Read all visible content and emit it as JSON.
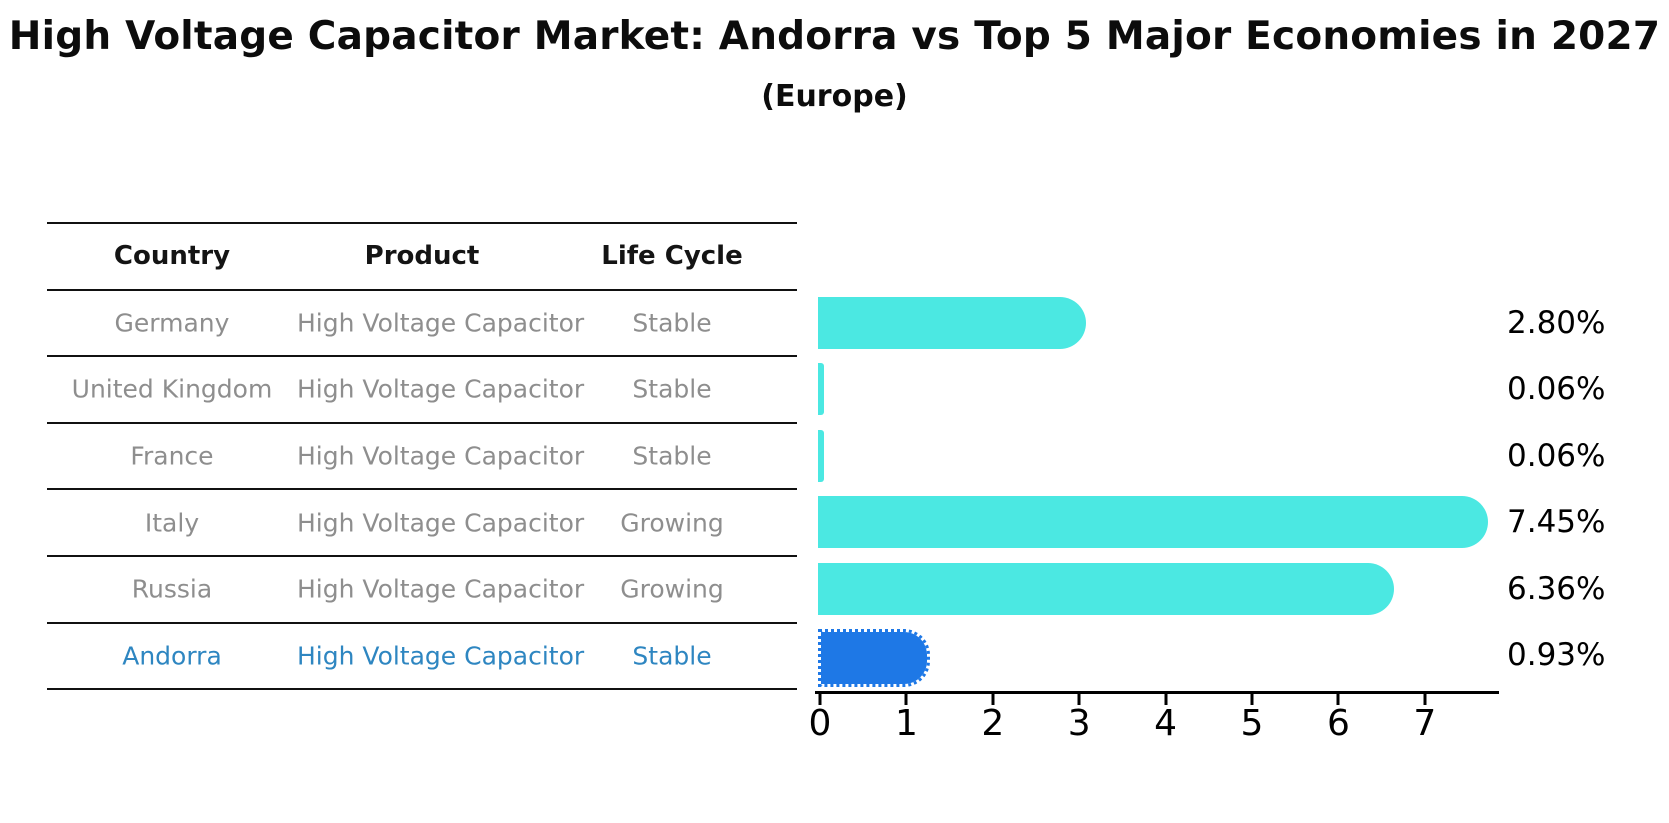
{
  "title": "High Voltage Capacitor Market: Andorra vs Top 5 Major Economies in 2027",
  "subtitle": "(Europe)",
  "table": {
    "headers": [
      "Country",
      "Product",
      "Life Cycle"
    ],
    "rows": [
      {
        "country": "Germany",
        "product": "High Voltage Capacitor",
        "life_cycle": "Stable",
        "highlighted": false
      },
      {
        "country": "United Kingdom",
        "product": "High Voltage Capacitor",
        "life_cycle": "Stable",
        "highlighted": false
      },
      {
        "country": "France",
        "product": "High Voltage Capacitor",
        "life_cycle": "Stable",
        "highlighted": false
      },
      {
        "country": "Italy",
        "product": "High Voltage Capacitor",
        "life_cycle": "Growing",
        "highlighted": false
      },
      {
        "country": "Russia",
        "product": "High Voltage Capacitor",
        "life_cycle": "Growing",
        "highlighted": false
      },
      {
        "country": "Andorra",
        "product": "High Voltage Capacitor",
        "life_cycle": "Stable",
        "highlighted": true
      }
    ]
  },
  "chart_data": {
    "type": "bar",
    "orientation": "horizontal",
    "title": "High Voltage Capacitor Market: Andorra vs Top 5 Major Economies in 2027",
    "subtitle": "(Europe)",
    "categories": [
      "Germany",
      "United Kingdom",
      "France",
      "Italy",
      "Russia",
      "Andorra"
    ],
    "values": [
      2.8,
      0.06,
      0.06,
      7.45,
      6.36,
      0.93
    ],
    "bar_labels": [
      "2.80%",
      "0.06%",
      "0.06%",
      "7.45%",
      "6.36%",
      "0.93%"
    ],
    "x_ticks": [
      "0",
      "1",
      "2",
      "3",
      "4",
      "5",
      "6",
      "7"
    ],
    "xlim": [
      0,
      7.85
    ],
    "xlabel": "",
    "ylabel": "",
    "grid": false,
    "legend": false,
    "highlight_index": 5,
    "colors": {
      "bar": "#4BE8E2",
      "highlight_bar": "#1E78E6",
      "highlight_text": "#2E86C1",
      "row_text": "#8e8e8e",
      "header_text": "#141414",
      "label_text": "#000000"
    }
  }
}
